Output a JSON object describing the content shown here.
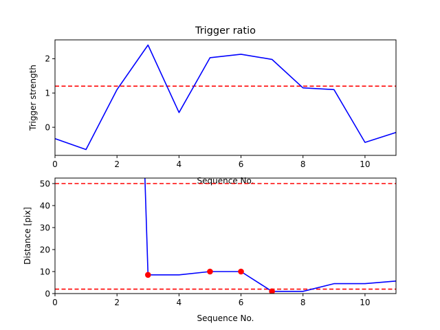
{
  "chart_data": [
    {
      "type": "line",
      "title": "Trigger ratio",
      "xlabel": "Sequence No.",
      "ylabel": "Trigger strength",
      "xlim": [
        0,
        11
      ],
      "ylim": [
        -0.82,
        2.55
      ],
      "xticks": [
        0,
        2,
        4,
        6,
        8,
        10
      ],
      "yticks": [
        0,
        1,
        2
      ],
      "grid": false,
      "series": [
        {
          "color": "#0000ff",
          "x": [
            0,
            1,
            2,
            3,
            4,
            5,
            6,
            7,
            8,
            9,
            10,
            11
          ],
          "y": [
            -0.33,
            -0.65,
            1.1,
            2.4,
            0.43,
            2.03,
            2.13,
            1.98,
            1.15,
            1.1,
            -0.44,
            -0.15
          ]
        }
      ],
      "hlines": [
        {
          "y": 1.2,
          "color": "#ff0000",
          "style": "dashed"
        }
      ]
    },
    {
      "type": "line",
      "title": "",
      "xlabel": "Sequence No.",
      "ylabel": "Distance [pix]",
      "xlim": [
        0,
        11
      ],
      "ylim": [
        0,
        52.5
      ],
      "xticks": [
        0,
        2,
        4,
        6,
        8,
        10
      ],
      "yticks": [
        0,
        10,
        20,
        30,
        40,
        50
      ],
      "grid": false,
      "series": [
        {
          "color": "#0000ff",
          "x": [
            2.9,
            3,
            4,
            5,
            6,
            7,
            8,
            9,
            10,
            11
          ],
          "y": [
            52.5,
            8.5,
            8.5,
            10,
            10,
            1,
            1,
            4.5,
            4.5,
            5.7
          ]
        }
      ],
      "markers": {
        "color": "#ff0000",
        "x": [
          3,
          5,
          6,
          7
        ],
        "y": [
          8.5,
          10,
          10,
          1
        ]
      },
      "hlines": [
        {
          "y": 50,
          "color": "#ff0000",
          "style": "dashed"
        },
        {
          "y": 2,
          "color": "#ff0000",
          "style": "dashed"
        }
      ]
    }
  ]
}
